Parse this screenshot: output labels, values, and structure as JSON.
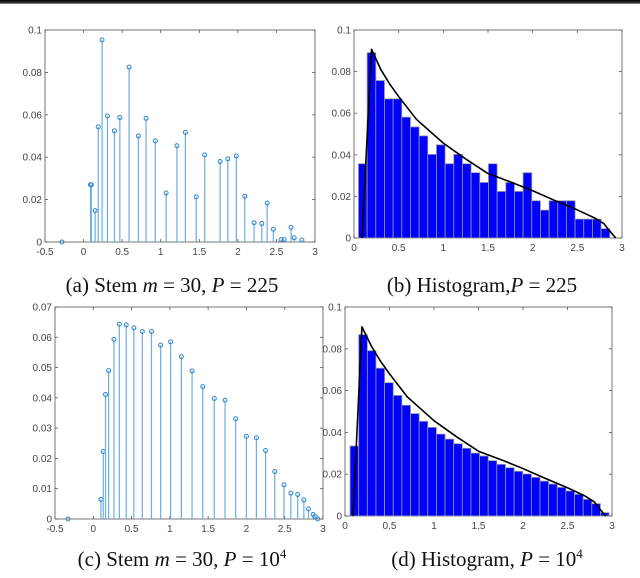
{
  "captions": [
    {
      "prefix": "(a) Stem ",
      "v1": "m",
      "mid": " = 30, ",
      "v2": "P",
      "suffix": " = 225",
      "sup": ""
    },
    {
      "prefix": "(b) Histogram,",
      "v1": "",
      "mid": "",
      "v2": "P",
      "suffix": " = 225",
      "sup": ""
    },
    {
      "prefix": "(c) Stem ",
      "v1": "m",
      "mid": " = 30, ",
      "v2": "P",
      "suffix": " = 10",
      "sup": "4"
    },
    {
      "prefix": "(d) Histogram, ",
      "v1": "",
      "mid": "",
      "v2": "P",
      "suffix": " = 10",
      "sup": "4"
    }
  ],
  "colors": {
    "stem": "#6aaee0",
    "marker": "#2f86cf",
    "bar": "#0000ff",
    "bar_edge": "#9a9a9a",
    "curve": "#000000"
  },
  "chart_data": [
    {
      "type": "stem",
      "title": "(a) Stem m = 30, P = 225",
      "xlim": [
        -0.5,
        3
      ],
      "ylim": [
        0,
        0.1
      ],
      "xticks": [
        "-0.5",
        "0",
        "0.5",
        "1",
        "1.5",
        "2",
        "2.5",
        "3"
      ],
      "yticks": [
        "0",
        "0.02",
        "0.04",
        "0.06",
        "0.08",
        "0.1"
      ],
      "x": [
        -0.28,
        0.09,
        0.1,
        0.15,
        0.19,
        0.24,
        0.31,
        0.4,
        0.47,
        0.59,
        0.71,
        0.81,
        0.93,
        1.07,
        1.21,
        1.32,
        1.46,
        1.57,
        1.77,
        1.87,
        1.98,
        2.09,
        2.21,
        2.31,
        2.38,
        2.46,
        2.56,
        2.6,
        2.69,
        2.73,
        2.83
      ],
      "y": [
        0,
        0.027,
        0.027,
        0.0148,
        0.0543,
        0.0953,
        0.0595,
        0.0524,
        0.0587,
        0.0825,
        0.05,
        0.0583,
        0.0477,
        0.0231,
        0.0454,
        0.0517,
        0.0213,
        0.0411,
        0.038,
        0.0392,
        0.0406,
        0.0216,
        0.0091,
        0.0087,
        0.0184,
        0.006,
        0.0011,
        0.0011,
        0.0069,
        0.002,
        0.0009
      ]
    },
    {
      "type": "bar",
      "title": "(b) Histogram, P = 225",
      "xlim": [
        0,
        3
      ],
      "ylim": [
        0,
        0.1
      ],
      "xticks": [
        "0",
        "0.5",
        "1",
        "1.5",
        "2",
        "2.5",
        "3"
      ],
      "yticks": [
        "0",
        "0.02",
        "0.04",
        "0.06",
        "0.08",
        "0.1"
      ],
      "bin_start": 0.05,
      "bin_width": 0.097,
      "values": [
        0.0357,
        0.0891,
        0.0757,
        0.0669,
        0.0669,
        0.0581,
        0.0534,
        0.0491,
        0.0402,
        0.0448,
        0.0357,
        0.0402,
        0.0357,
        0.0314,
        0.0267,
        0.0357,
        0.0224,
        0.0267,
        0.0224,
        0.0314,
        0.0179,
        0.0134,
        0.0179,
        0.0179,
        0.0179,
        0.0091,
        0.0091,
        0.0091,
        0.0045
      ],
      "curve": {
        "x": [
          0.09,
          0.196,
          0.3,
          0.4,
          0.5,
          0.7,
          1.0,
          1.25,
          1.5,
          1.75,
          2.0,
          2.25,
          2.5,
          2.7,
          2.8,
          2.85,
          2.93
        ],
        "y": [
          0,
          0.0907,
          0.081,
          0.074,
          0.068,
          0.057,
          0.0456,
          0.038,
          0.031,
          0.027,
          0.0227,
          0.018,
          0.0135,
          0.0095,
          0.0068,
          0.004,
          0
        ]
      }
    },
    {
      "type": "stem",
      "title": "(c) Stem m = 30, P = 10^4",
      "xlim": [
        -0.5,
        3
      ],
      "ylim": [
        0,
        0.07
      ],
      "xticks": [
        "-0.5",
        "0",
        "0.5",
        "1",
        "1.5",
        "2",
        "2.5",
        "3"
      ],
      "yticks": [
        "0",
        "0.01",
        "0.02",
        "0.03",
        "0.04",
        "0.05",
        "0.06",
        "0.07"
      ],
      "x": [
        -0.33,
        0.1,
        0.13,
        0.16,
        0.2,
        0.27,
        0.34,
        0.43,
        0.53,
        0.64,
        0.76,
        0.88,
        1.01,
        1.15,
        1.29,
        1.43,
        1.58,
        1.72,
        1.86,
        2.0,
        2.13,
        2.25,
        2.37,
        2.49,
        2.58,
        2.67,
        2.75,
        2.81,
        2.87,
        2.9,
        2.93
      ],
      "y": [
        0,
        0.0065,
        0.0223,
        0.0411,
        0.049,
        0.0593,
        0.0643,
        0.0641,
        0.0631,
        0.0619,
        0.0619,
        0.0574,
        0.0585,
        0.0536,
        0.0489,
        0.0437,
        0.0398,
        0.0392,
        0.0331,
        0.0273,
        0.0268,
        0.0226,
        0.0157,
        0.0113,
        0.0085,
        0.0081,
        0.0063,
        0.0033,
        0.0015,
        0.0008,
        0
      ]
    },
    {
      "type": "bar",
      "title": "(d) Histogram, P = 10^4",
      "xlim": [
        0,
        3
      ],
      "ylim": [
        0,
        0.1
      ],
      "xticks": [
        "0",
        "0.5",
        "1",
        "1.5",
        "2",
        "2.5",
        "3"
      ],
      "yticks": [
        "0",
        "0.02",
        "0.04",
        "0.06",
        "0.08",
        "0.1"
      ],
      "bin_start": 0.057,
      "bin_width": 0.097,
      "values": [
        0.0335,
        0.0868,
        0.0791,
        0.0707,
        0.0638,
        0.0577,
        0.053,
        0.049,
        0.0453,
        0.0424,
        0.0392,
        0.0368,
        0.0346,
        0.0324,
        0.0301,
        0.0287,
        0.0265,
        0.0247,
        0.0231,
        0.0214,
        0.0201,
        0.0185,
        0.0167,
        0.0153,
        0.0137,
        0.012,
        0.0104,
        0.008,
        0.0059,
        0.0016
      ],
      "curve": {
        "x": [
          0.09,
          0.19,
          0.3,
          0.4,
          0.5,
          0.7,
          1.0,
          1.25,
          1.5,
          1.75,
          2.0,
          2.25,
          2.5,
          2.7,
          2.8,
          2.85,
          2.93
        ],
        "y": [
          0,
          0.0905,
          0.081,
          0.074,
          0.068,
          0.057,
          0.0456,
          0.038,
          0.031,
          0.027,
          0.0227,
          0.018,
          0.0135,
          0.0095,
          0.0068,
          0.004,
          0
        ]
      }
    }
  ]
}
